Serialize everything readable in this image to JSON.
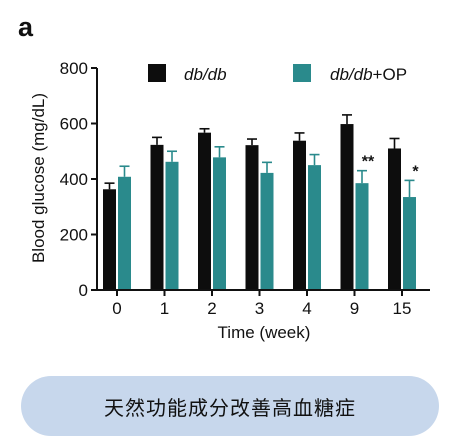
{
  "panel_label": "a",
  "caption": "天然功能成分改善高血糖症",
  "colors": {
    "db_db": "#0d0d0d",
    "db_db_op": "#2a8a8c",
    "caption_bg": "#c7d7ec"
  },
  "chart_data": {
    "type": "bar",
    "title": "",
    "xlabel": "Time (week)",
    "ylabel": "Blood glucose (mg/dL)",
    "ylim": [
      0,
      800
    ],
    "yticks": [
      "0",
      "200",
      "400",
      "600",
      "800"
    ],
    "categories": [
      "0",
      "1",
      "2",
      "3",
      "4",
      "9",
      "15"
    ],
    "series": [
      {
        "name": "db/db",
        "name_suffix": "",
        "values": [
          363,
          523,
          567,
          522,
          538,
          598,
          510
        ],
        "errors": [
          22,
          27,
          14,
          22,
          28,
          33,
          36
        ]
      },
      {
        "name": "db/db",
        "name_suffix": "+OP",
        "values": [
          408,
          462,
          478,
          422,
          450,
          385,
          335
        ],
        "errors": [
          38,
          38,
          38,
          38,
          38,
          45,
          60
        ]
      }
    ],
    "annotations": [
      {
        "category": "9",
        "series": 1,
        "text": "**"
      },
      {
        "category": "15",
        "series": 1,
        "text": "*"
      }
    ],
    "legend_position": "top",
    "grid": false
  }
}
